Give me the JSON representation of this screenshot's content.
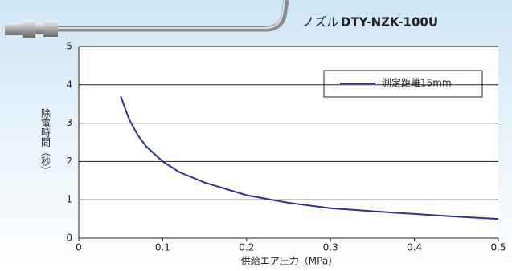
{
  "product": {
    "label": "ノズル",
    "model": "DTY-NZK-100U"
  },
  "chart_data": {
    "type": "line",
    "x_label": "供給エア圧力（MPa）",
    "y_label": "除電時間（秒）",
    "x": [
      0.05,
      0.06,
      0.07,
      0.08,
      0.1,
      0.12,
      0.15,
      0.2,
      0.25,
      0.3,
      0.35,
      0.4,
      0.45,
      0.5
    ],
    "series": [
      {
        "name": "測定距離15mm",
        "color": "#2e3192",
        "values": [
          3.7,
          3.1,
          2.7,
          2.4,
          2.0,
          1.72,
          1.45,
          1.12,
          0.92,
          0.78,
          0.7,
          0.63,
          0.56,
          0.5
        ]
      }
    ],
    "xlim": [
      0,
      0.5
    ],
    "xticks": [
      0,
      0.1,
      0.2,
      0.3,
      0.4,
      0.5
    ],
    "ylim": [
      0,
      5
    ],
    "yticks": [
      0,
      1,
      2,
      3,
      4,
      5
    ],
    "grid": true,
    "legend": "upper right"
  }
}
